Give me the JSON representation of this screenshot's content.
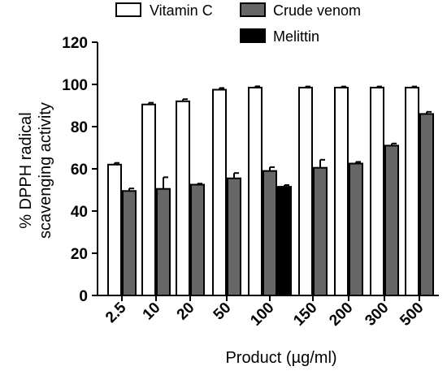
{
  "chart_data": {
    "type": "bar",
    "title": "",
    "xlabel": "Product (µg/ml)",
    "ylabel_lines": [
      "% DPPH radical",
      "scavenging activity"
    ],
    "ylim": [
      0,
      120
    ],
    "yticks": [
      0,
      20,
      40,
      60,
      80,
      100,
      120
    ],
    "categories": [
      "2.5",
      "10",
      "20",
      "50",
      "100",
      "150",
      "200",
      "300",
      "500"
    ],
    "series": [
      {
        "name": "Vitamin C",
        "color": "#ffffff",
        "values": [
          62,
          90.5,
          92,
          97.5,
          98.5,
          98.5,
          98.5,
          98.5,
          98.5
        ],
        "errors": [
          0.8,
          0.8,
          1,
          0.8,
          0.6,
          0.5,
          0.5,
          0.5,
          0.5
        ]
      },
      {
        "name": "Crude venom",
        "color": "#666666",
        "values": [
          49.5,
          50.5,
          52.5,
          55.5,
          59,
          60.5,
          62.5,
          71,
          86
        ],
        "errors": [
          1.2,
          5.5,
          0.5,
          2.5,
          1.8,
          3.8,
          0.8,
          1,
          1
        ]
      },
      {
        "name": "Melittin",
        "color": "#000000",
        "values": [
          null,
          null,
          null,
          null,
          51.5,
          null,
          null,
          null,
          null
        ],
        "errors": [
          null,
          null,
          null,
          null,
          0.8,
          null,
          null,
          null,
          null
        ]
      }
    ],
    "legend_position": "top"
  }
}
